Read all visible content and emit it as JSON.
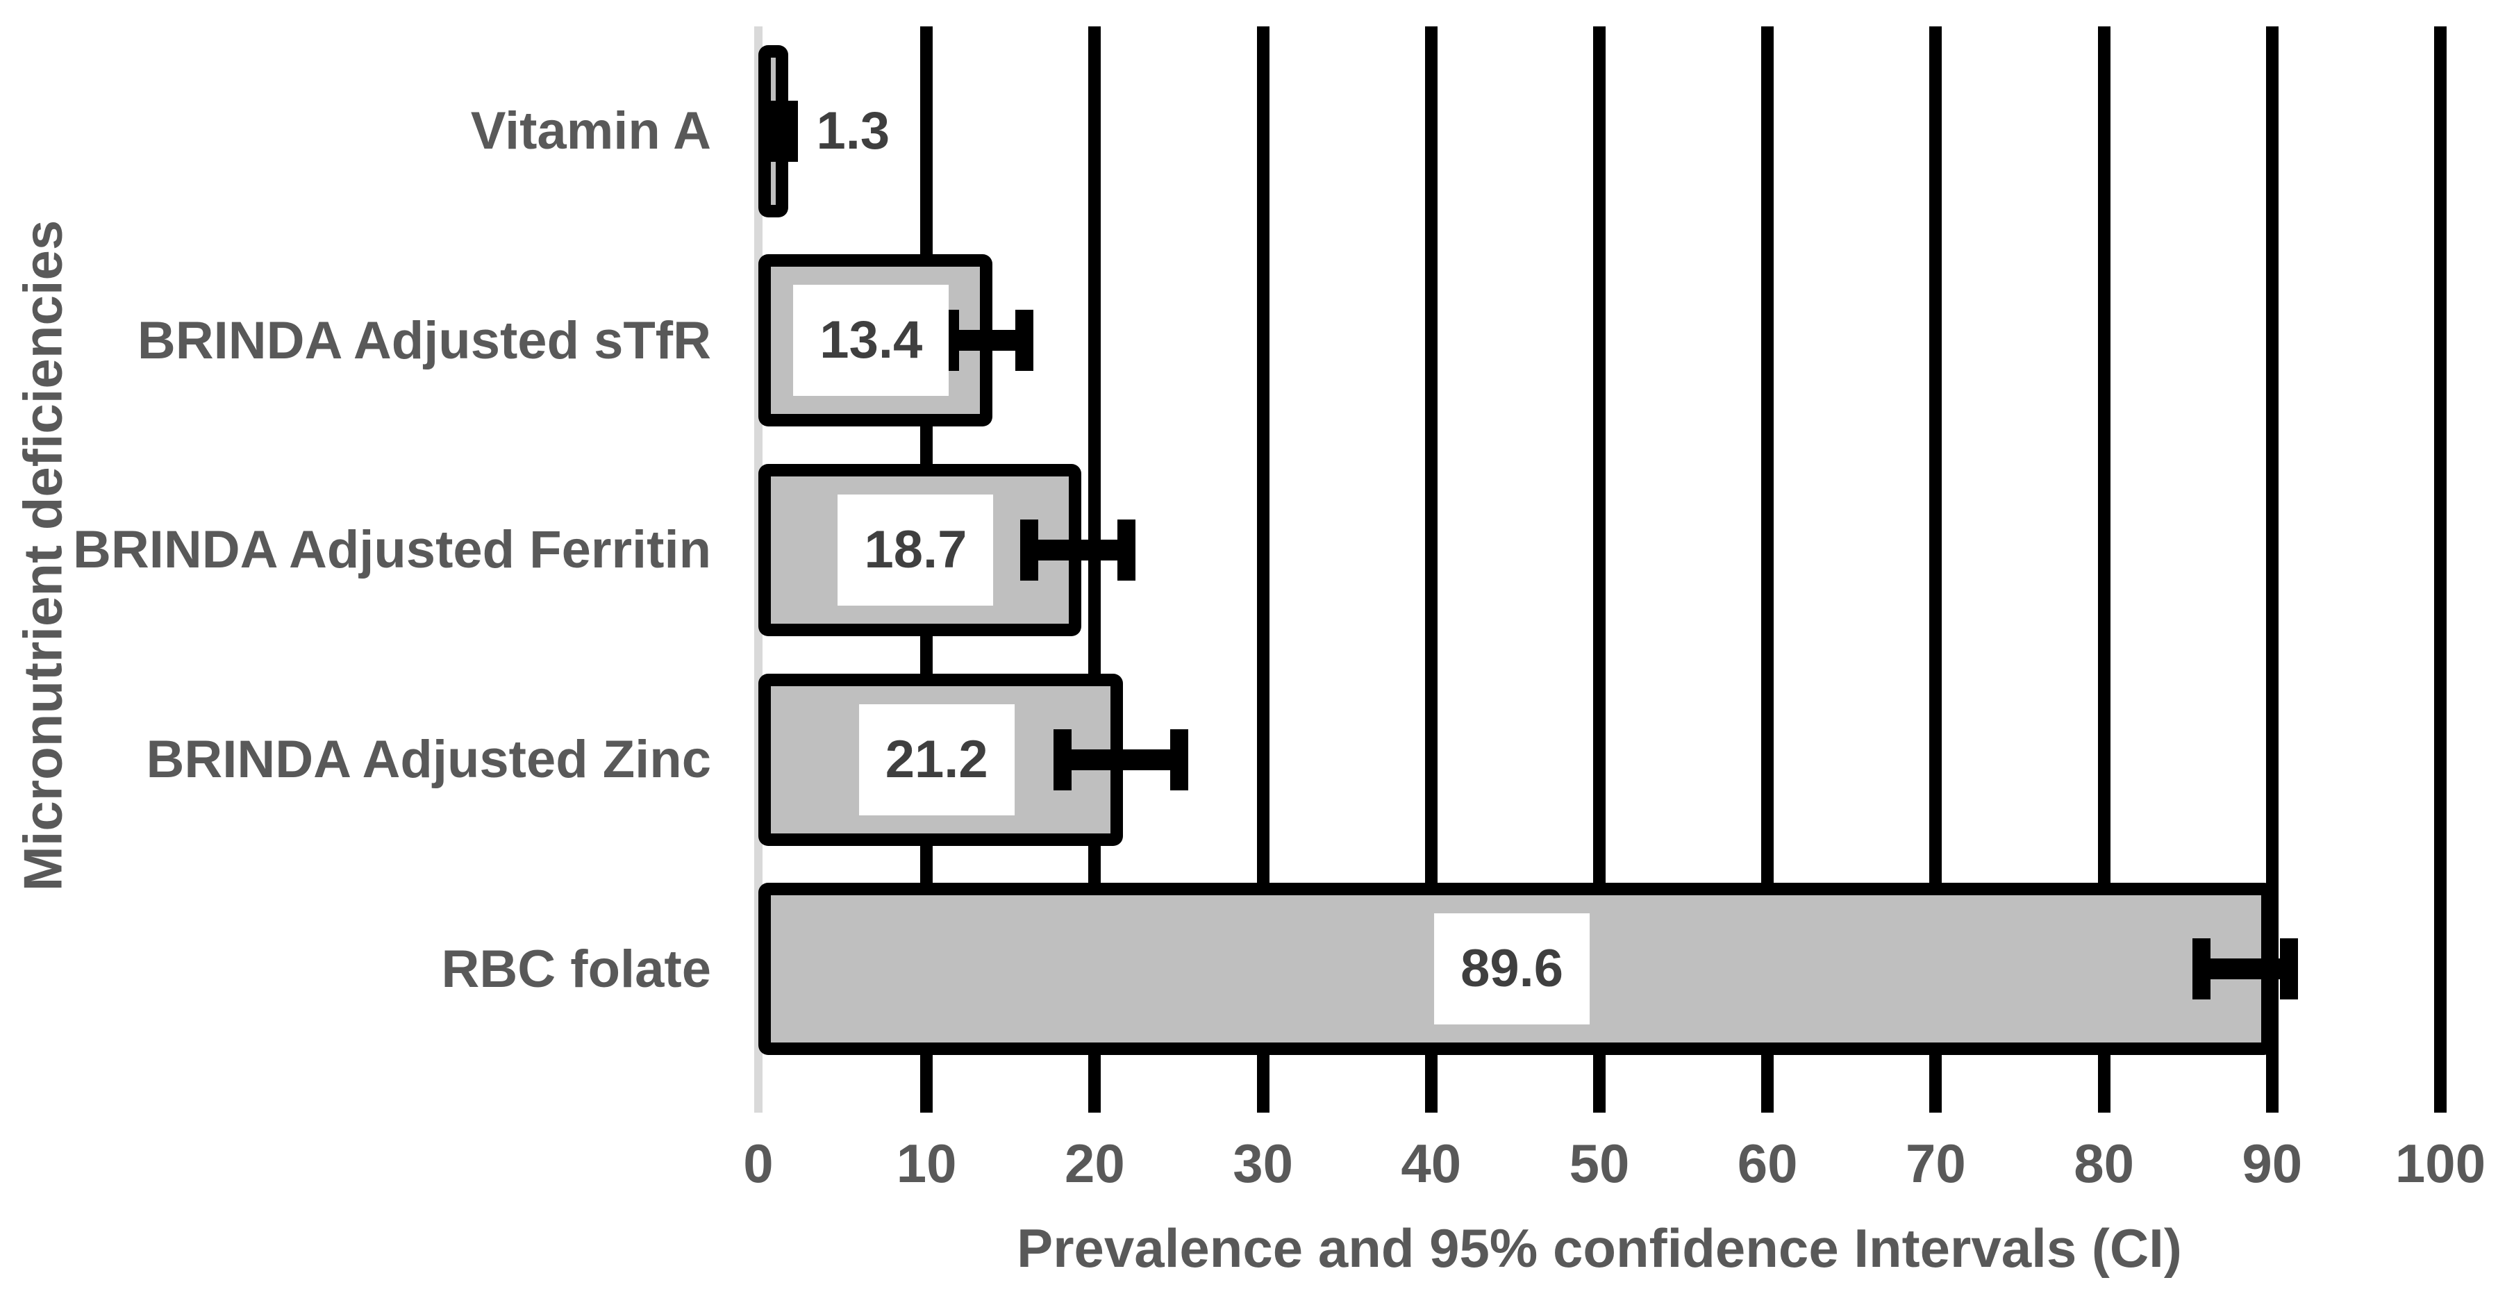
{
  "colors": {
    "background": "#ffffff",
    "bar_fill": "#bfbfbf",
    "bar_border": "#000000",
    "gridline": "#000000",
    "axis_line": "#d9d9d9",
    "axis_text": "#595959",
    "value_text": "#3f3f3f"
  },
  "chart_data": {
    "type": "bar",
    "orientation": "horizontal",
    "title": "",
    "xlabel": "Prevalence and 95% confidence Intervals (CI)",
    "ylabel": "Micronutrient deficiencies",
    "xlim": [
      0,
      100
    ],
    "x_ticks": [
      0,
      10,
      20,
      30,
      40,
      50,
      60,
      70,
      80,
      90,
      100
    ],
    "grid": "vertical black gridlines at every x tick, drawn behind bars",
    "legend": "none",
    "categories": [
      "Vitamin A",
      "BRINDA Adjusted sTfR",
      "BRINDA Adjusted Ferritin",
      "BRINDA Adjusted Zinc",
      "RBC folate"
    ],
    "values": [
      1.3,
      13.4,
      18.7,
      21.2,
      89.6
    ],
    "value_labels": [
      "1.3",
      "13.4",
      "18.7",
      "21.2",
      "89.6"
    ],
    "error_bars_95ci": [
      {
        "low": 0.8,
        "high": 1.8
      },
      {
        "low": 11.4,
        "high": 15.8
      },
      {
        "low": 16.1,
        "high": 21.9
      },
      {
        "low": 18.1,
        "high": 25.0
      },
      {
        "low": 85.8,
        "high": 91.0
      }
    ],
    "label_placement": [
      "outside-right",
      "inside-center",
      "inside-center",
      "inside-center",
      "inside-center"
    ]
  }
}
